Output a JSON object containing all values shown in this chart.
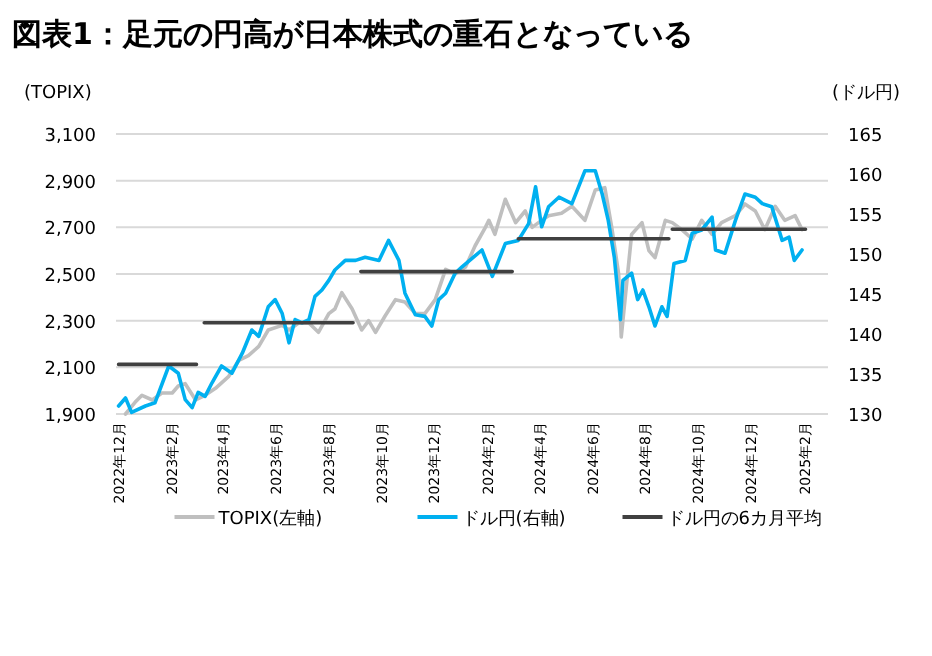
{
  "chart_data": {
    "type": "line",
    "title": "図表1：足元の円高が日本株式の重石となっている",
    "ylabel": "(TOPIX)",
    "y2label": "(ドル円)",
    "grid": "y",
    "legend": "bottom",
    "xlim": [
      "2022-11-28",
      "2025-02-28"
    ],
    "xticks": [
      {
        "value": "2022-12",
        "label": "2022年12月"
      },
      {
        "value": "2023-02",
        "label": "2023年2月"
      },
      {
        "value": "2023-04",
        "label": "2023年4月"
      },
      {
        "value": "2023-06",
        "label": "2023年6月"
      },
      {
        "value": "2023-08",
        "label": "2023年8月"
      },
      {
        "value": "2023-10",
        "label": "2023年10月"
      },
      {
        "value": "2023-12",
        "label": "2023年12月"
      },
      {
        "value": "2024-02",
        "label": "2024年2月"
      },
      {
        "value": "2024-04",
        "label": "2024年4月"
      },
      {
        "value": "2024-06",
        "label": "2024年6月"
      },
      {
        "value": "2024-08",
        "label": "2024年8月"
      },
      {
        "value": "2024-10",
        "label": "2024年10月"
      },
      {
        "value": "2024-12",
        "label": "2024年12月"
      },
      {
        "value": "2025-02",
        "label": "2025年2月"
      }
    ],
    "ylim": [
      1900,
      3100
    ],
    "yticks": [
      {
        "value": 1900,
        "label": "1,900"
      },
      {
        "value": 2100,
        "label": "2,100"
      },
      {
        "value": 2300,
        "label": "2,300"
      },
      {
        "value": 2500,
        "label": "2,500"
      },
      {
        "value": 2700,
        "label": "2,700"
      },
      {
        "value": 2900,
        "label": "2,900"
      },
      {
        "value": 3100,
        "label": "3,100"
      }
    ],
    "y2lim": [
      130,
      165
    ],
    "y2ticks": [
      130,
      135,
      140,
      145,
      150,
      155,
      160,
      165
    ],
    "series": [
      {
        "name": "TOPIX(左軸)",
        "color": "#bfbfbf",
        "x": [
          "2022-12-09",
          "2022-12-20",
          "2022-12-28",
          "2023-01-09",
          "2023-01-20",
          "2023-02-01",
          "2023-02-08",
          "2023-02-16",
          "2023-02-28",
          "2023-03-11",
          "2023-03-23",
          "2023-04-07",
          "2023-04-19",
          "2023-04-30",
          "2023-05-12",
          "2023-05-23",
          "2023-06-08",
          "2023-06-16",
          "2023-06-27",
          "2023-07-09",
          "2023-07-20",
          "2023-08-01",
          "2023-08-08",
          "2023-08-16",
          "2023-08-28",
          "2023-09-08",
          "2023-09-16",
          "2023-09-24",
          "2023-10-05",
          "2023-10-17",
          "2023-10-28",
          "2023-11-09",
          "2023-11-20",
          "2023-12-02",
          "2023-12-14",
          "2023-12-25",
          "2024-01-06",
          "2024-01-17",
          "2024-01-29",
          "2024-02-02",
          "2024-02-09",
          "2024-02-21",
          "2024-03-04",
          "2024-03-15",
          "2024-03-23",
          "2024-04-03",
          "2024-04-11",
          "2024-04-26",
          "2024-05-08",
          "2024-05-23",
          "2024-06-04",
          "2024-06-15",
          "2024-06-23",
          "2024-07-01",
          "2024-07-04",
          "2024-07-16",
          "2024-07-28",
          "2024-08-05",
          "2024-08-12",
          "2024-08-24",
          "2024-09-01",
          "2024-09-12",
          "2024-09-24",
          "2024-10-05",
          "2024-10-17",
          "2024-10-28",
          "2024-11-13",
          "2024-11-24",
          "2024-12-06",
          "2024-12-17",
          "2024-12-29",
          "2025-01-09",
          "2025-01-21",
          "2025-01-29"
        ],
        "values": [
          1900,
          1950,
          1980,
          1960,
          1990,
          1990,
          2020,
          2030,
          1960,
          1980,
          2010,
          2060,
          2130,
          2150,
          2190,
          2260,
          2280,
          2260,
          2290,
          2290,
          2250,
          2330,
          2350,
          2420,
          2350,
          2260,
          2300,
          2250,
          2320,
          2390,
          2380,
          2330,
          2330,
          2390,
          2520,
          2500,
          2530,
          2620,
          2700,
          2730,
          2670,
          2820,
          2720,
          2770,
          2700,
          2730,
          2750,
          2760,
          2790,
          2730,
          2860,
          2870,
          2700,
          2500,
          2230,
          2670,
          2720,
          2600,
          2570,
          2730,
          2720,
          2690,
          2650,
          2730,
          2670,
          2720,
          2750,
          2800,
          2770,
          2690,
          2790,
          2730,
          2750,
          2690
        ]
      },
      {
        "name": "ドル円(右軸)",
        "color": "#00b0f0",
        "axis": "y2",
        "x": [
          "2022-12-01",
          "2022-12-09",
          "2022-12-16",
          "2023-01-01",
          "2023-01-12",
          "2023-01-28",
          "2023-02-08",
          "2023-02-16",
          "2023-02-24",
          "2023-03-03",
          "2023-03-11",
          "2023-03-19",
          "2023-03-30",
          "2023-04-11",
          "2023-04-23",
          "2023-05-04",
          "2023-05-12",
          "2023-05-23",
          "2023-05-31",
          "2023-06-08",
          "2023-06-16",
          "2023-06-23",
          "2023-07-01",
          "2023-07-09",
          "2023-07-16",
          "2023-07-24",
          "2023-08-01",
          "2023-08-08",
          "2023-08-20",
          "2023-09-01",
          "2023-09-12",
          "2023-09-28",
          "2023-10-09",
          "2023-10-21",
          "2023-10-28",
          "2023-11-09",
          "2023-11-20",
          "2023-11-28",
          "2023-12-06",
          "2023-12-14",
          "2023-12-25",
          "2024-01-02",
          "2024-01-25",
          "2024-02-06",
          "2024-02-21",
          "2024-03-07",
          "2024-03-19",
          "2024-03-27",
          "2024-04-03",
          "2024-04-11",
          "2024-04-23",
          "2024-05-08",
          "2024-05-23",
          "2024-06-04",
          "2024-06-12",
          "2024-06-19",
          "2024-06-26",
          "2024-07-03",
          "2024-07-06",
          "2024-07-16",
          "2024-07-23",
          "2024-07-29",
          "2024-08-05",
          "2024-08-12",
          "2024-08-20",
          "2024-08-26",
          "2024-09-03",
          "2024-09-16",
          "2024-09-24",
          "2024-10-05",
          "2024-10-17",
          "2024-10-21",
          "2024-11-01",
          "2024-11-13",
          "2024-11-24",
          "2024-12-06",
          "2024-12-14",
          "2024-12-25",
          "2025-01-06",
          "2025-01-14",
          "2025-01-20",
          "2025-01-29"
        ],
        "values": [
          131.0,
          132.0,
          130.2,
          131.0,
          131.4,
          136.0,
          135.1,
          131.8,
          130.8,
          132.7,
          132.2,
          133.9,
          136.0,
          135.1,
          137.6,
          140.5,
          139.7,
          143.4,
          144.3,
          142.6,
          138.9,
          141.8,
          141.4,
          141.8,
          144.7,
          145.5,
          146.7,
          148.0,
          149.2,
          149.2,
          149.6,
          149.2,
          151.7,
          149.2,
          145.1,
          142.4,
          142.2,
          141.0,
          144.3,
          145.1,
          147.6,
          148.4,
          150.5,
          147.2,
          151.3,
          151.7,
          153.8,
          158.4,
          153.4,
          155.9,
          157.1,
          156.3,
          160.4,
          160.4,
          157.5,
          154.2,
          149.6,
          141.8,
          146.7,
          147.6,
          144.3,
          145.5,
          143.4,
          141.0,
          143.4,
          142.2,
          148.8,
          149.2,
          152.6,
          153.0,
          154.6,
          150.5,
          150.1,
          154.2,
          157.5,
          157.1,
          156.3,
          155.9,
          151.7,
          152.1,
          149.2,
          150.5
        ]
      },
      {
        "name": "ドル円の6カ月平均",
        "color": "#404040",
        "axis": "y2",
        "x": [
          "2022-12-01",
          "2023-03-01",
          null,
          "2023-03-10",
          "2023-08-29",
          null,
          "2023-09-07",
          "2024-02-29",
          null,
          "2024-03-07",
          "2024-08-28",
          null,
          "2024-09-01",
          "2025-02-02"
        ],
        "values": [
          136.2,
          136.2,
          null,
          141.4,
          141.4,
          null,
          147.8,
          147.8,
          null,
          151.9,
          151.9,
          null,
          153.1,
          153.1
        ]
      }
    ]
  }
}
